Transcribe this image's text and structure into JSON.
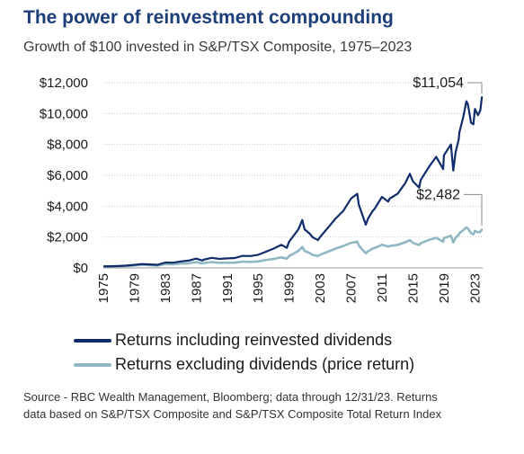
{
  "header": {
    "title": "The power of reinvestment compounding",
    "subtitle": "Growth of $100 invested in S&P/TSX Composite, 1975–2023"
  },
  "colors": {
    "total_return": "#0f2d6b",
    "price_return": "#8fb8c2",
    "grid": "#c8c8c8"
  },
  "chart_data": {
    "type": "line",
    "xlim": [
      1975,
      2024
    ],
    "ylim": [
      0,
      12000
    ],
    "ytick_values": [
      0,
      2000,
      4000,
      6000,
      8000,
      10000,
      12000
    ],
    "ytick_labels": [
      "$0",
      "$2,000",
      "$4,000",
      "$6,000",
      "$8,000",
      "$10,000",
      "$12,000"
    ],
    "xtick_values": [
      1975,
      1979,
      1983,
      1987,
      1991,
      1995,
      1999,
      2003,
      2007,
      2011,
      2015,
      2019,
      2023
    ],
    "xtick_labels": [
      "1975",
      "1979",
      "1983",
      "1987",
      "1991",
      "1995",
      "1999",
      "2003",
      "2007",
      "2011",
      "2015",
      "2019",
      "2023"
    ],
    "grid": "horizontal",
    "series": [
      {
        "name": "Returns including reinvested dividends",
        "x": [
          1975,
          1976,
          1977,
          1978,
          1979,
          1980,
          1981,
          1982,
          1983,
          1984,
          1985,
          1986,
          1987,
          1987.8,
          1988,
          1989,
          1990,
          1991,
          1992,
          1993,
          1994,
          1995,
          1996,
          1997,
          1998,
          1998.7,
          1999,
          2000.2,
          2000.7,
          2001,
          2001.7,
          2002,
          2002.7,
          2003,
          2004,
          2005,
          2006,
          2007,
          2007.8,
          2008,
          2008.9,
          2009.2,
          2009.8,
          2010,
          2011,
          2011.8,
          2012,
          2013,
          2014,
          2014.6,
          2015,
          2015.8,
          2016,
          2017,
          2018,
          2018.9,
          2019,
          2019.9,
          2020.2,
          2020.5,
          2020.9,
          2021,
          2021.5,
          2021.9,
          2022.1,
          2022.5,
          2022.8,
          2023,
          2023.4,
          2023.7,
          2023.9,
          2024
        ],
        "values": [
          100,
          110,
          125,
          150,
          200,
          250,
          230,
          200,
          350,
          340,
          420,
          470,
          600,
          480,
          540,
          650,
          580,
          620,
          640,
          780,
          770,
          850,
          1050,
          1250,
          1500,
          1300,
          1700,
          2500,
          3100,
          2500,
          2200,
          2000,
          1800,
          2000,
          2600,
          3200,
          3700,
          4500,
          4800,
          4100,
          2800,
          3200,
          3700,
          3800,
          4600,
          4300,
          4500,
          4800,
          5500,
          6100,
          5600,
          5200,
          5700,
          6500,
          7200,
          6400,
          7300,
          8000,
          6300,
          7500,
          8300,
          8800,
          9800,
          10800,
          10600,
          9400,
          9300,
          10300,
          9900,
          10200,
          11054,
          11054
        ]
      },
      {
        "name": "Returns excluding dividends (price return)",
        "x": [
          1975,
          1976,
          1977,
          1978,
          1979,
          1980,
          1981,
          1982,
          1983,
          1984,
          1985,
          1986,
          1987,
          1987.8,
          1988,
          1989,
          1990,
          1991,
          1992,
          1993,
          1994,
          1995,
          1996,
          1997,
          1998,
          1998.7,
          1999,
          2000.2,
          2000.7,
          2001,
          2001.7,
          2002,
          2002.7,
          2003,
          2004,
          2005,
          2006,
          2007,
          2007.8,
          2008,
          2008.9,
          2009.2,
          2009.8,
          2010,
          2011,
          2011.8,
          2012,
          2013,
          2014,
          2014.6,
          2015,
          2015.8,
          2016,
          2017,
          2018,
          2018.9,
          2019,
          2019.9,
          2020.2,
          2020.5,
          2020.9,
          2021,
          2021.5,
          2021.9,
          2022.1,
          2022.5,
          2022.8,
          2023,
          2023.4,
          2023.7,
          2023.9,
          2024
        ],
        "values": [
          100,
          105,
          112,
          125,
          160,
          200,
          180,
          150,
          250,
          240,
          280,
          300,
          370,
          290,
          320,
          380,
          330,
          340,
          340,
          410,
          390,
          420,
          510,
          580,
          680,
          600,
          770,
          1100,
          1350,
          1100,
          950,
          850,
          770,
          850,
          1050,
          1250,
          1420,
          1620,
          1700,
          1450,
          950,
          1080,
          1250,
          1280,
          1500,
          1380,
          1420,
          1490,
          1660,
          1800,
          1620,
          1480,
          1600,
          1800,
          1950,
          1700,
          1930,
          2080,
          1650,
          1950,
          2150,
          2250,
          2450,
          2620,
          2550,
          2250,
          2180,
          2400,
          2300,
          2350,
          2482,
          2482
        ]
      }
    ],
    "annotations": [
      {
        "label": "$11,054",
        "value": 11054
      },
      {
        "label": "$2,482",
        "value": 2482
      }
    ]
  },
  "source": {
    "line1": "Source - RBC Wealth Management, Bloomberg; data through 12/31/23. Returns",
    "line2": "data based on S&P/TSX Composite and S&P/TSX Composite Total Return Index"
  }
}
